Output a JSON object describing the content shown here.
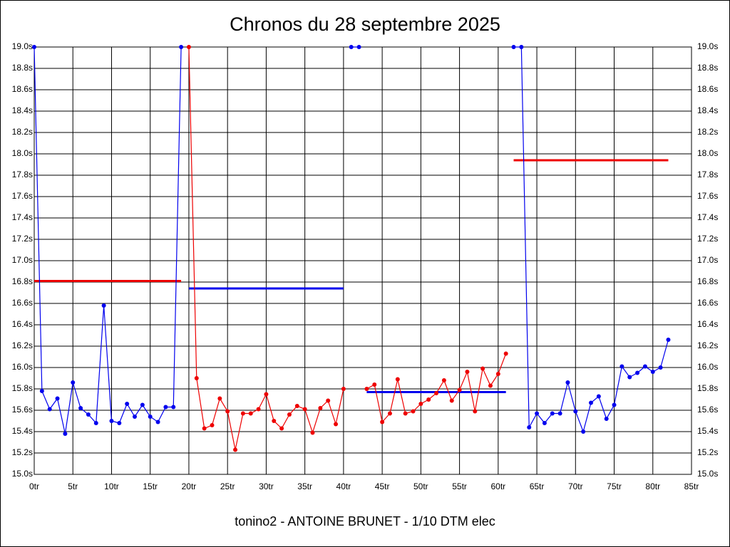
{
  "chart_data": {
    "type": "line",
    "title": "Chronos du 28 septembre 2025",
    "x_label": "tonino2 - ANTOINE BRUNET - 1/10 DTM elec",
    "xlim": [
      0,
      85
    ],
    "ylim": [
      15.0,
      19.0
    ],
    "grid": true,
    "xticks": [
      {
        "value": 0,
        "label": "0tr"
      },
      {
        "value": 5,
        "label": "5tr"
      },
      {
        "value": 10,
        "label": "10tr"
      },
      {
        "value": 15,
        "label": "15tr"
      },
      {
        "value": 20,
        "label": "20tr"
      },
      {
        "value": 25,
        "label": "25tr"
      },
      {
        "value": 30,
        "label": "30tr"
      },
      {
        "value": 35,
        "label": "35tr"
      },
      {
        "value": 40,
        "label": "40tr"
      },
      {
        "value": 45,
        "label": "45tr"
      },
      {
        "value": 50,
        "label": "50tr"
      },
      {
        "value": 55,
        "label": "55tr"
      },
      {
        "value": 60,
        "label": "60tr"
      },
      {
        "value": 65,
        "label": "65tr"
      },
      {
        "value": 70,
        "label": "70tr"
      },
      {
        "value": 75,
        "label": "75tr"
      },
      {
        "value": 80,
        "label": "80tr"
      },
      {
        "value": 85,
        "label": "85tr"
      }
    ],
    "yticks": [
      {
        "value": 15.0,
        "label": "15.0s"
      },
      {
        "value": 15.2,
        "label": "15.2s"
      },
      {
        "value": 15.4,
        "label": "15.4s"
      },
      {
        "value": 15.6,
        "label": "15.6s"
      },
      {
        "value": 15.8,
        "label": "15.8s"
      },
      {
        "value": 16.0,
        "label": "16.0s"
      },
      {
        "value": 16.2,
        "label": "16.2s"
      },
      {
        "value": 16.4,
        "label": "16.4s"
      },
      {
        "value": 16.6,
        "label": "16.6s"
      },
      {
        "value": 16.8,
        "label": "16.8s"
      },
      {
        "value": 17.0,
        "label": "17.0s"
      },
      {
        "value": 17.2,
        "label": "17.2s"
      },
      {
        "value": 17.4,
        "label": "17.4s"
      },
      {
        "value": 17.6,
        "label": "17.6s"
      },
      {
        "value": 17.8,
        "label": "17.8s"
      },
      {
        "value": 18.0,
        "label": "18.0s"
      },
      {
        "value": 18.2,
        "label": "18.2s"
      },
      {
        "value": 18.4,
        "label": "18.4s"
      },
      {
        "value": 18.6,
        "label": "18.6s"
      },
      {
        "value": 18.8,
        "label": "18.8s"
      },
      {
        "value": 19.0,
        "label": "19.0s"
      }
    ],
    "x": [
      0,
      1,
      2,
      3,
      4,
      5,
      6,
      7,
      8,
      9,
      10,
      11,
      12,
      13,
      14,
      15,
      16,
      17,
      18,
      19,
      20,
      21,
      22,
      23,
      24,
      25,
      26,
      27,
      28,
      29,
      30,
      31,
      32,
      33,
      34,
      35,
      36,
      37,
      38,
      39,
      40,
      41,
      42,
      43,
      44,
      45,
      46,
      47,
      48,
      49,
      50,
      51,
      52,
      53,
      54,
      55,
      56,
      57,
      58,
      59,
      60,
      61,
      62,
      63,
      64,
      65,
      66,
      67,
      68,
      69,
      70,
      71,
      72,
      73,
      74,
      75,
      76,
      77,
      78,
      79,
      80,
      81,
      82
    ],
    "series": [
      {
        "color": "#0000ee",
        "values": [
          19.0,
          15.78,
          15.61,
          15.71,
          15.38,
          15.86,
          15.62,
          15.56,
          15.48,
          16.58,
          15.5,
          15.48,
          15.66,
          15.54,
          15.65,
          15.54,
          15.49,
          15.63,
          15.63,
          19.0,
          null,
          null,
          null,
          null,
          null,
          null,
          null,
          null,
          null,
          null,
          null,
          null,
          null,
          null,
          null,
          null,
          null,
          null,
          null,
          null,
          null,
          19.0,
          19.0,
          null,
          null,
          null,
          null,
          null,
          null,
          null,
          null,
          null,
          null,
          null,
          null,
          null,
          null,
          null,
          null,
          null,
          null,
          null,
          19.0,
          19.0,
          15.44,
          15.57,
          15.48,
          15.57,
          15.57,
          15.86,
          15.59,
          15.4,
          15.67,
          15.73,
          15.52,
          15.65,
          16.01,
          15.91,
          15.95,
          16.01,
          15.96,
          16.0,
          16.26
        ]
      },
      {
        "color": "#ee0000",
        "values": [
          null,
          null,
          null,
          null,
          null,
          null,
          null,
          null,
          null,
          null,
          null,
          null,
          null,
          null,
          null,
          null,
          null,
          null,
          null,
          null,
          19.0,
          15.9,
          15.43,
          15.46,
          15.71,
          15.59,
          15.23,
          15.57,
          15.57,
          15.61,
          15.75,
          15.5,
          15.43,
          15.56,
          15.64,
          15.61,
          15.39,
          15.62,
          15.69,
          15.47,
          15.8,
          null,
          null,
          15.8,
          15.84,
          15.49,
          15.57,
          15.89,
          15.57,
          15.59,
          15.66,
          15.7,
          15.76,
          15.88,
          15.69,
          15.79,
          15.96,
          15.59,
          15.99,
          15.83,
          15.94,
          16.13,
          null,
          null,
          null,
          null,
          null,
          null,
          null,
          null,
          null,
          null,
          null,
          null,
          null,
          null,
          null,
          null,
          null,
          null,
          null,
          null,
          null
        ]
      }
    ],
    "averages": [
      {
        "color": "#ee0000",
        "value": 16.81,
        "x": [
          0,
          19
        ]
      },
      {
        "color": "#0000ee",
        "value": 16.74,
        "x": [
          20,
          40
        ]
      },
      {
        "color": "#0000ee",
        "value": 15.77,
        "x": [
          43,
          61
        ]
      },
      {
        "color": "#ee0000",
        "value": 17.94,
        "x": [
          62,
          82
        ]
      }
    ]
  }
}
